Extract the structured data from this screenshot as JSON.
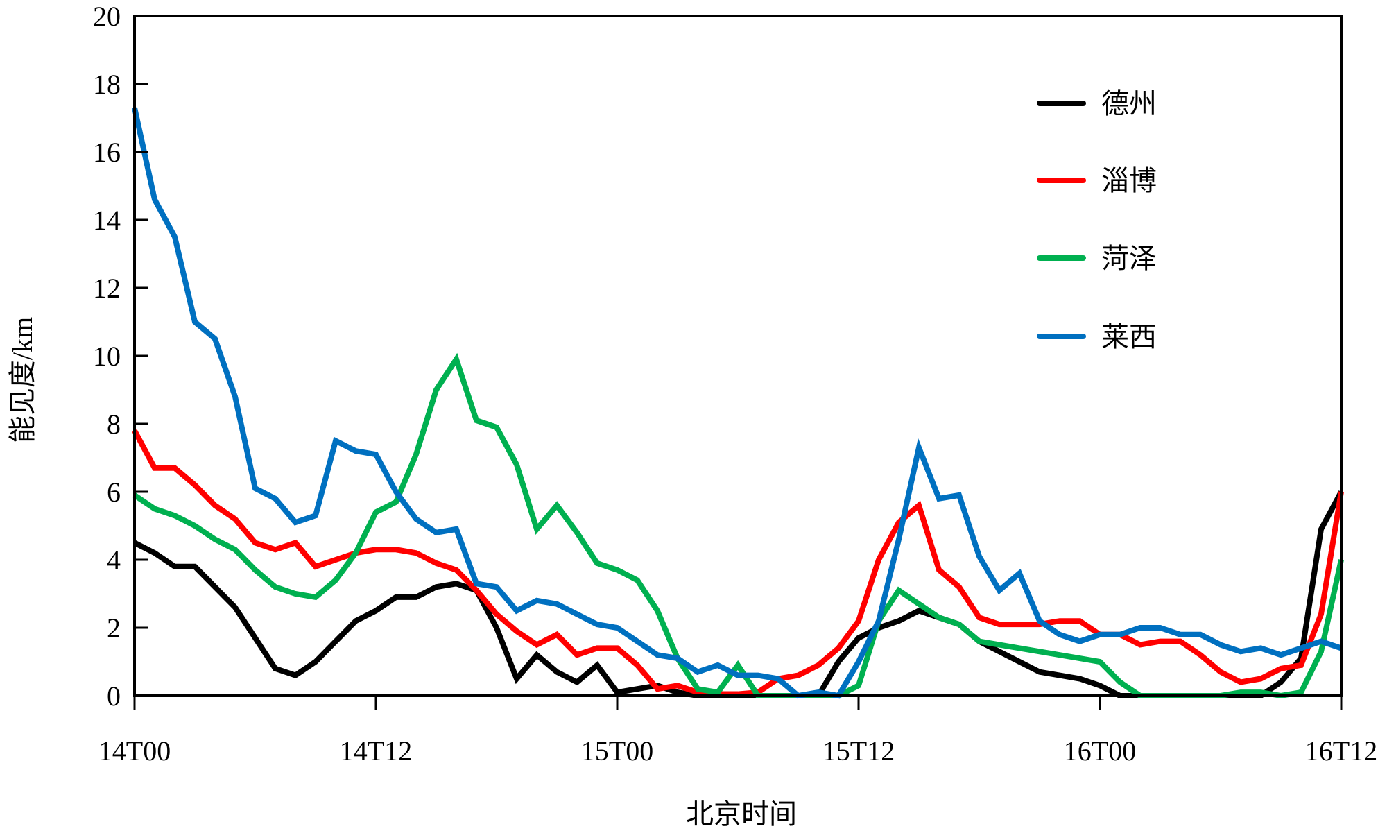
{
  "chart_data": {
    "type": "line",
    "title": "",
    "xlabel": "北京时间",
    "ylabel": "能见度/km",
    "ylim": [
      0,
      20
    ],
    "xlim": [
      0,
      60
    ],
    "x_unit": "hours since 14T00 (hourly)",
    "yticks": [
      0,
      2,
      4,
      6,
      8,
      10,
      12,
      14,
      16,
      18,
      20
    ],
    "xticks": [
      {
        "value": 0,
        "label": "14T00"
      },
      {
        "value": 12,
        "label": "14T12"
      },
      {
        "value": 24,
        "label": "15T00"
      },
      {
        "value": 36,
        "label": "15T12"
      },
      {
        "value": 48,
        "label": "16T00"
      },
      {
        "value": 60,
        "label": "16T12"
      }
    ],
    "grid": false,
    "legend_position": "top-right",
    "series": [
      {
        "name": "德州",
        "color": "#000000",
        "values": [
          4.5,
          4.2,
          3.8,
          3.8,
          3.2,
          2.6,
          1.7,
          0.8,
          0.6,
          1.0,
          1.6,
          2.2,
          2.5,
          2.9,
          2.9,
          3.2,
          3.3,
          3.1,
          2.0,
          0.5,
          1.2,
          0.7,
          0.4,
          0.9,
          0.1,
          0.2,
          0.3,
          0.1,
          0,
          0,
          0,
          0,
          0,
          0,
          0,
          1.0,
          1.7,
          2.0,
          2.2,
          2.5,
          2.3,
          2.1,
          1.6,
          1.3,
          1.0,
          0.7,
          0.6,
          0.5,
          0.3,
          0,
          0,
          0,
          0,
          0,
          0,
          0,
          0,
          0.4,
          1.1,
          4.9,
          6.0
        ]
      },
      {
        "name": "淄博",
        "color": "#ff0000",
        "values": [
          7.8,
          6.7,
          6.7,
          6.2,
          5.6,
          5.2,
          4.5,
          4.3,
          4.5,
          3.8,
          4.0,
          4.2,
          4.3,
          4.3,
          4.2,
          3.9,
          3.7,
          3.1,
          2.4,
          1.9,
          1.5,
          1.8,
          1.2,
          1.4,
          1.4,
          0.9,
          0.2,
          0.3,
          0.1,
          0.05,
          0.05,
          0.1,
          0.5,
          0.6,
          0.9,
          1.4,
          2.2,
          4.0,
          5.1,
          5.6,
          3.7,
          3.2,
          2.3,
          2.1,
          2.1,
          2.1,
          2.2,
          2.2,
          1.8,
          1.8,
          1.5,
          1.6,
          1.6,
          1.2,
          0.7,
          0.4,
          0.5,
          0.8,
          0.9,
          2.4,
          6.0
        ]
      },
      {
        "name": "菏泽",
        "color": "#00b050",
        "values": [
          5.9,
          5.5,
          5.3,
          5.0,
          4.6,
          4.3,
          3.7,
          3.2,
          3.0,
          2.9,
          3.4,
          4.2,
          5.4,
          5.7,
          7.1,
          9.0,
          9.9,
          8.1,
          7.9,
          6.8,
          4.9,
          5.6,
          4.8,
          3.9,
          3.7,
          3.4,
          2.5,
          1.1,
          0.2,
          0.1,
          0.9,
          0,
          0,
          0,
          0,
          0,
          0.3,
          2.2,
          3.1,
          2.7,
          2.3,
          2.1,
          1.6,
          1.5,
          1.4,
          1.3,
          1.2,
          1.1,
          1.0,
          0.4,
          0,
          0,
          0,
          0,
          0,
          0.1,
          0.1,
          0,
          0.1,
          1.3,
          4.0
        ]
      },
      {
        "name": "莱西",
        "color": "#0070c0",
        "values": [
          17.3,
          14.6,
          13.5,
          11.0,
          10.5,
          8.8,
          6.1,
          5.8,
          5.1,
          5.3,
          7.5,
          7.2,
          7.1,
          6.0,
          5.2,
          4.8,
          4.9,
          3.3,
          3.2,
          2.5,
          2.8,
          2.7,
          2.4,
          2.1,
          2.0,
          1.6,
          1.2,
          1.1,
          0.7,
          0.9,
          0.6,
          0.6,
          0.5,
          0,
          0.1,
          0,
          1.0,
          2.2,
          4.6,
          7.3,
          5.8,
          5.9,
          4.1,
          3.1,
          3.6,
          2.2,
          1.8,
          1.6,
          1.8,
          1.8,
          2.0,
          2.0,
          1.8,
          1.8,
          1.5,
          1.3,
          1.4,
          1.2,
          1.4,
          1.6,
          1.4
        ]
      }
    ]
  }
}
